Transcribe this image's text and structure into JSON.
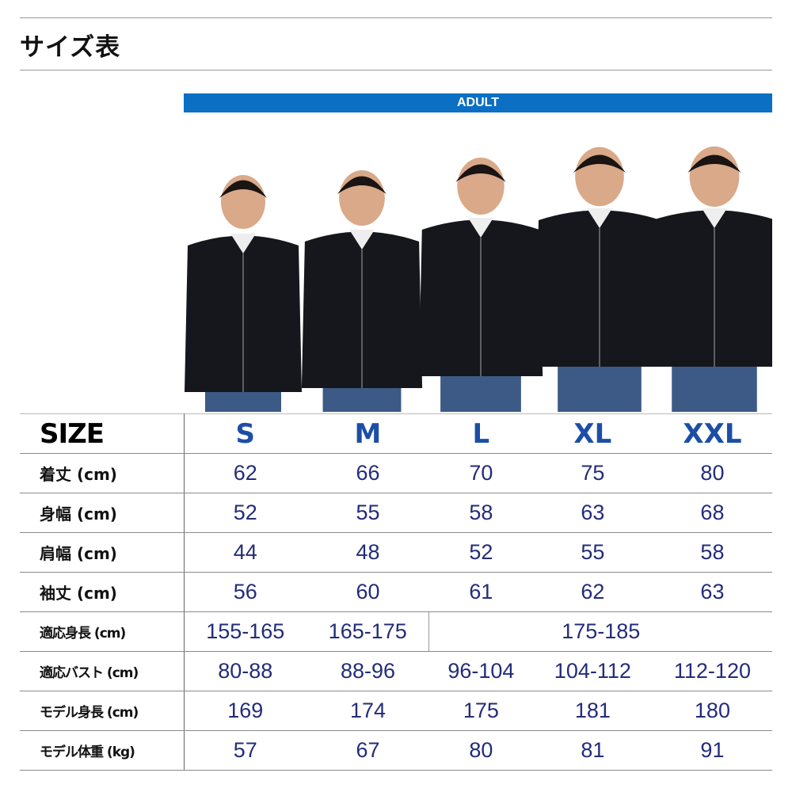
{
  "title": "サイズ表",
  "band_label": "ADULT",
  "colors": {
    "band": "#0b6fc4",
    "size_header": "#1c4ea6",
    "values": "#232c7a"
  },
  "table": {
    "header_label": "SIZE",
    "sizes": [
      "S",
      "M",
      "L",
      "XL",
      "XXL"
    ],
    "rows": [
      {
        "label": "着丈 (cm)",
        "values": [
          "62",
          "66",
          "70",
          "75",
          "80"
        ]
      },
      {
        "label": "身幅 (cm)",
        "values": [
          "52",
          "55",
          "58",
          "63",
          "68"
        ]
      },
      {
        "label": "肩幅 (cm)",
        "values": [
          "44",
          "48",
          "52",
          "55",
          "58"
        ]
      },
      {
        "label": "袖丈 (cm)",
        "values": [
          "56",
          "60",
          "61",
          "62",
          "63"
        ]
      },
      {
        "label": "適応身長 (cm)",
        "values": [
          "155-165",
          "165-175",
          "175-185"
        ]
      },
      {
        "label": "適応バスト (cm)",
        "values": [
          "80-88",
          "88-96",
          "96-104",
          "104-112",
          "112-120"
        ]
      },
      {
        "label": "モデル身長 (cm)",
        "values": [
          "169",
          "174",
          "175",
          "181",
          "180"
        ]
      },
      {
        "label": "モデル体重 (kg)",
        "values": [
          "57",
          "67",
          "80",
          "81",
          "91"
        ]
      }
    ]
  }
}
